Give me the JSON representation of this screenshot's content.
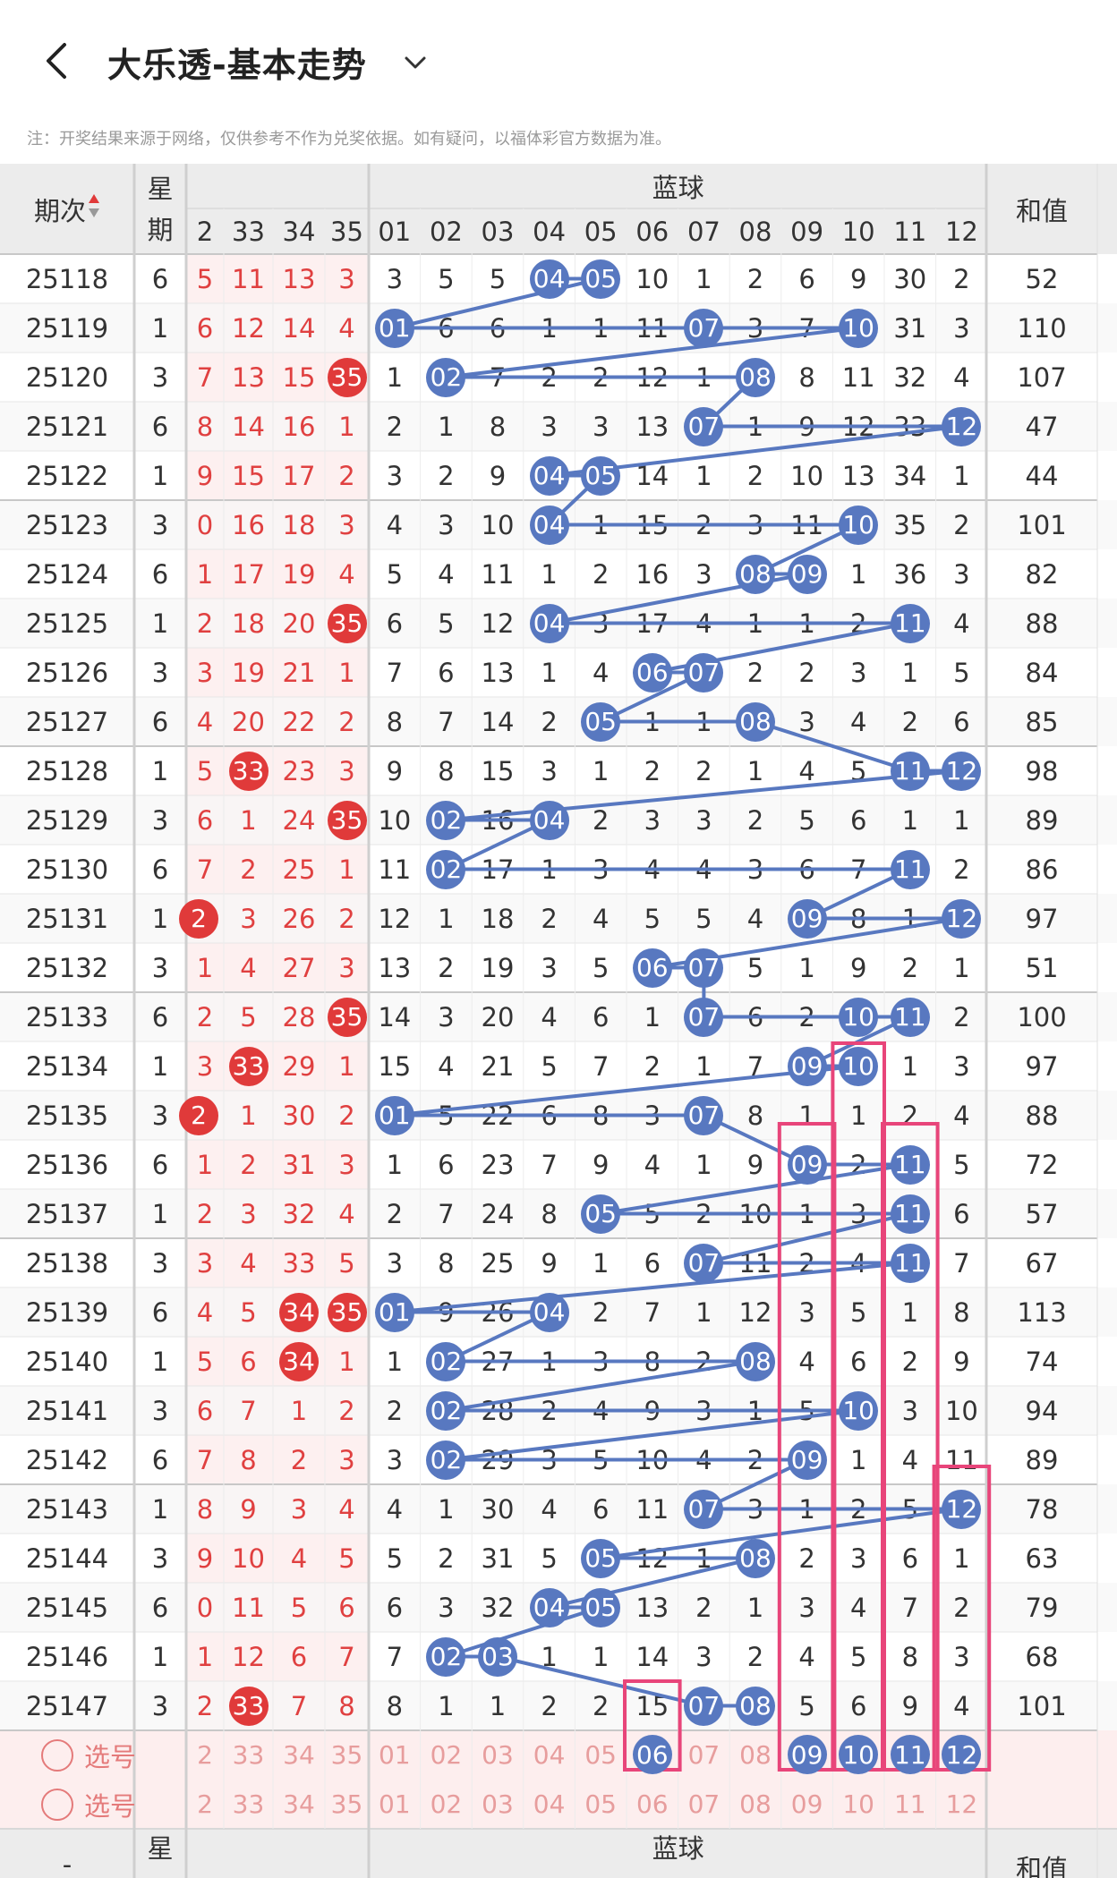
{
  "header": {
    "title": "大乐透-基本走势",
    "notice": "注：开奖结果来源于网络，仅供参考不作为兑奖依据。如有疑问，以福体彩官方数据为准。"
  },
  "columns": {
    "issue": "期次",
    "weekday": "星期",
    "blue_group": "蓝球",
    "sum": "和值",
    "front_partial": [
      "2",
      "33",
      "34",
      "35"
    ],
    "blue": [
      "01",
      "02",
      "03",
      "04",
      "05",
      "06",
      "07",
      "08",
      "09",
      "10",
      "11",
      "12"
    ]
  },
  "rows": [
    {
      "issue": "25118",
      "wd": "6",
      "front": [
        "5",
        "11",
        "13",
        "3"
      ],
      "blue": [
        "3",
        "5",
        "5",
        "04",
        "05",
        "10",
        "1",
        "2",
        "6",
        "9",
        "30",
        "2"
      ],
      "sum": "52"
    },
    {
      "issue": "25119",
      "wd": "1",
      "front": [
        "6",
        "12",
        "14",
        "4"
      ],
      "blue": [
        "01",
        "6",
        "6",
        "1",
        "1",
        "11",
        "07",
        "3",
        "7",
        "10",
        "31",
        "3"
      ],
      "sum": "110"
    },
    {
      "issue": "25120",
      "wd": "3",
      "front": [
        "7",
        "13",
        "15",
        "35"
      ],
      "blue": [
        "1",
        "02",
        "7",
        "2",
        "2",
        "12",
        "1",
        "08",
        "8",
        "11",
        "32",
        "4"
      ],
      "sum": "107"
    },
    {
      "issue": "25121",
      "wd": "6",
      "front": [
        "8",
        "14",
        "16",
        "1"
      ],
      "blue": [
        "2",
        "1",
        "8",
        "3",
        "3",
        "13",
        "07",
        "1",
        "9",
        "12",
        "33",
        "12"
      ],
      "sum": "47"
    },
    {
      "issue": "25122",
      "wd": "1",
      "front": [
        "9",
        "15",
        "17",
        "2"
      ],
      "blue": [
        "3",
        "2",
        "9",
        "04",
        "05",
        "14",
        "1",
        "2",
        "10",
        "13",
        "34",
        "1"
      ],
      "sum": "44"
    },
    {
      "issue": "25123",
      "wd": "3",
      "front": [
        "0",
        "16",
        "18",
        "3"
      ],
      "blue": [
        "4",
        "3",
        "10",
        "04",
        "1",
        "15",
        "2",
        "3",
        "11",
        "10",
        "35",
        "2"
      ],
      "sum": "101"
    },
    {
      "issue": "25124",
      "wd": "6",
      "front": [
        "1",
        "17",
        "19",
        "4"
      ],
      "blue": [
        "5",
        "4",
        "11",
        "1",
        "2",
        "16",
        "3",
        "08",
        "09",
        "1",
        "36",
        "3"
      ],
      "sum": "82"
    },
    {
      "issue": "25125",
      "wd": "1",
      "front": [
        "2",
        "18",
        "20",
        "35"
      ],
      "blue": [
        "6",
        "5",
        "12",
        "04",
        "3",
        "17",
        "4",
        "1",
        "1",
        "2",
        "11",
        "4"
      ],
      "sum": "88"
    },
    {
      "issue": "25126",
      "wd": "3",
      "front": [
        "3",
        "19",
        "21",
        "1"
      ],
      "blue": [
        "7",
        "6",
        "13",
        "1",
        "4",
        "06",
        "07",
        "2",
        "2",
        "3",
        "1",
        "5"
      ],
      "sum": "84"
    },
    {
      "issue": "25127",
      "wd": "6",
      "front": [
        "4",
        "20",
        "22",
        "2"
      ],
      "blue": [
        "8",
        "7",
        "14",
        "2",
        "05",
        "1",
        "1",
        "08",
        "3",
        "4",
        "2",
        "6"
      ],
      "sum": "85"
    },
    {
      "issue": "25128",
      "wd": "1",
      "front": [
        "5",
        "33",
        "23",
        "3"
      ],
      "blue": [
        "9",
        "8",
        "15",
        "3",
        "1",
        "2",
        "2",
        "1",
        "4",
        "5",
        "11",
        "12"
      ],
      "sum": "98"
    },
    {
      "issue": "25129",
      "wd": "3",
      "front": [
        "6",
        "1",
        "24",
        "35"
      ],
      "blue": [
        "10",
        "02",
        "16",
        "04",
        "2",
        "3",
        "3",
        "2",
        "5",
        "6",
        "1",
        "1"
      ],
      "sum": "89"
    },
    {
      "issue": "25130",
      "wd": "6",
      "front": [
        "7",
        "2",
        "25",
        "1"
      ],
      "blue": [
        "11",
        "02",
        "17",
        "1",
        "3",
        "4",
        "4",
        "3",
        "6",
        "7",
        "11",
        "2"
      ],
      "sum": "86"
    },
    {
      "issue": "25131",
      "wd": "1",
      "front": [
        "2",
        "3",
        "26",
        "2"
      ],
      "blue": [
        "12",
        "1",
        "18",
        "2",
        "4",
        "5",
        "5",
        "4",
        "09",
        "8",
        "1",
        "12"
      ],
      "sum": "97"
    },
    {
      "issue": "25132",
      "wd": "3",
      "front": [
        "1",
        "4",
        "27",
        "3"
      ],
      "blue": [
        "13",
        "2",
        "19",
        "3",
        "5",
        "06",
        "07",
        "5",
        "1",
        "9",
        "2",
        "1"
      ],
      "sum": "51"
    },
    {
      "issue": "25133",
      "wd": "6",
      "front": [
        "2",
        "5",
        "28",
        "35"
      ],
      "blue": [
        "14",
        "3",
        "20",
        "4",
        "6",
        "1",
        "07",
        "6",
        "2",
        "10",
        "11",
        "2"
      ],
      "sum": "100"
    },
    {
      "issue": "25134",
      "wd": "1",
      "front": [
        "3",
        "33",
        "29",
        "1"
      ],
      "blue": [
        "15",
        "4",
        "21",
        "5",
        "7",
        "2",
        "1",
        "7",
        "09",
        "10",
        "1",
        "3"
      ],
      "sum": "97"
    },
    {
      "issue": "25135",
      "wd": "3",
      "front": [
        "2",
        "1",
        "30",
        "2"
      ],
      "blue": [
        "01",
        "5",
        "22",
        "6",
        "8",
        "3",
        "07",
        "8",
        "1",
        "1",
        "2",
        "4"
      ],
      "sum": "88"
    },
    {
      "issue": "25136",
      "wd": "6",
      "front": [
        "1",
        "2",
        "31",
        "3"
      ],
      "blue": [
        "1",
        "6",
        "23",
        "7",
        "9",
        "4",
        "1",
        "9",
        "09",
        "2",
        "11",
        "5"
      ],
      "sum": "72"
    },
    {
      "issue": "25137",
      "wd": "1",
      "front": [
        "2",
        "3",
        "32",
        "4"
      ],
      "blue": [
        "2",
        "7",
        "24",
        "8",
        "05",
        "5",
        "2",
        "10",
        "1",
        "3",
        "11",
        "6"
      ],
      "sum": "57"
    },
    {
      "issue": "25138",
      "wd": "3",
      "front": [
        "3",
        "4",
        "33",
        "5"
      ],
      "blue": [
        "3",
        "8",
        "25",
        "9",
        "1",
        "6",
        "07",
        "11",
        "2",
        "4",
        "11",
        "7"
      ],
      "sum": "67"
    },
    {
      "issue": "25139",
      "wd": "6",
      "front": [
        "4",
        "5",
        "34",
        "35"
      ],
      "blue": [
        "01",
        "9",
        "26",
        "04",
        "2",
        "7",
        "1",
        "12",
        "3",
        "5",
        "1",
        "8"
      ],
      "sum": "113"
    },
    {
      "issue": "25140",
      "wd": "1",
      "front": [
        "5",
        "6",
        "34",
        "1"
      ],
      "blue": [
        "1",
        "02",
        "27",
        "1",
        "3",
        "8",
        "2",
        "08",
        "4",
        "6",
        "2",
        "9"
      ],
      "sum": "74"
    },
    {
      "issue": "25141",
      "wd": "3",
      "front": [
        "6",
        "7",
        "1",
        "2"
      ],
      "blue": [
        "2",
        "02",
        "28",
        "2",
        "4",
        "9",
        "3",
        "1",
        "5",
        "10",
        "3",
        "10"
      ],
      "sum": "94"
    },
    {
      "issue": "25142",
      "wd": "6",
      "front": [
        "7",
        "8",
        "2",
        "3"
      ],
      "blue": [
        "3",
        "02",
        "29",
        "3",
        "5",
        "10",
        "4",
        "2",
        "09",
        "1",
        "4",
        "11"
      ],
      "sum": "89"
    },
    {
      "issue": "25143",
      "wd": "1",
      "front": [
        "8",
        "9",
        "3",
        "4"
      ],
      "blue": [
        "4",
        "1",
        "30",
        "4",
        "6",
        "11",
        "07",
        "3",
        "1",
        "2",
        "5",
        "12"
      ],
      "sum": "78"
    },
    {
      "issue": "25144",
      "wd": "3",
      "front": [
        "9",
        "10",
        "4",
        "5"
      ],
      "blue": [
        "5",
        "2",
        "31",
        "5",
        "05",
        "12",
        "1",
        "08",
        "2",
        "3",
        "6",
        "1"
      ],
      "sum": "63"
    },
    {
      "issue": "25145",
      "wd": "6",
      "front": [
        "0",
        "11",
        "5",
        "6"
      ],
      "blue": [
        "6",
        "3",
        "32",
        "04",
        "05",
        "13",
        "2",
        "1",
        "3",
        "4",
        "7",
        "2"
      ],
      "sum": "79"
    },
    {
      "issue": "25146",
      "wd": "1",
      "front": [
        "1",
        "12",
        "6",
        "7"
      ],
      "blue": [
        "7",
        "02",
        "03",
        "1",
        "1",
        "14",
        "3",
        "2",
        "4",
        "5",
        "8",
        "3"
      ],
      "sum": "68"
    },
    {
      "issue": "25147",
      "wd": "3",
      "front": [
        "2",
        "33",
        "7",
        "8"
      ],
      "blue": [
        "8",
        "1",
        "1",
        "2",
        "2",
        "15",
        "07",
        "08",
        "5",
        "6",
        "9",
        "4"
      ],
      "sum": "101"
    }
  ],
  "picker": {
    "label": "选号",
    "front": [
      "2",
      "33",
      "34",
      "35"
    ],
    "blue": [
      "01",
      "02",
      "03",
      "04",
      "05",
      "06",
      "07",
      "08",
      "09",
      "10",
      "11",
      "12"
    ],
    "row1_blue_selected": [
      "06",
      "09",
      "10",
      "11",
      "12"
    ]
  },
  "colors": {
    "red_ball": "#e03a3a",
    "blue_ball": "#5878c0",
    "highlight_box": "#e8457a",
    "header_bg": "#eeeeee"
  }
}
